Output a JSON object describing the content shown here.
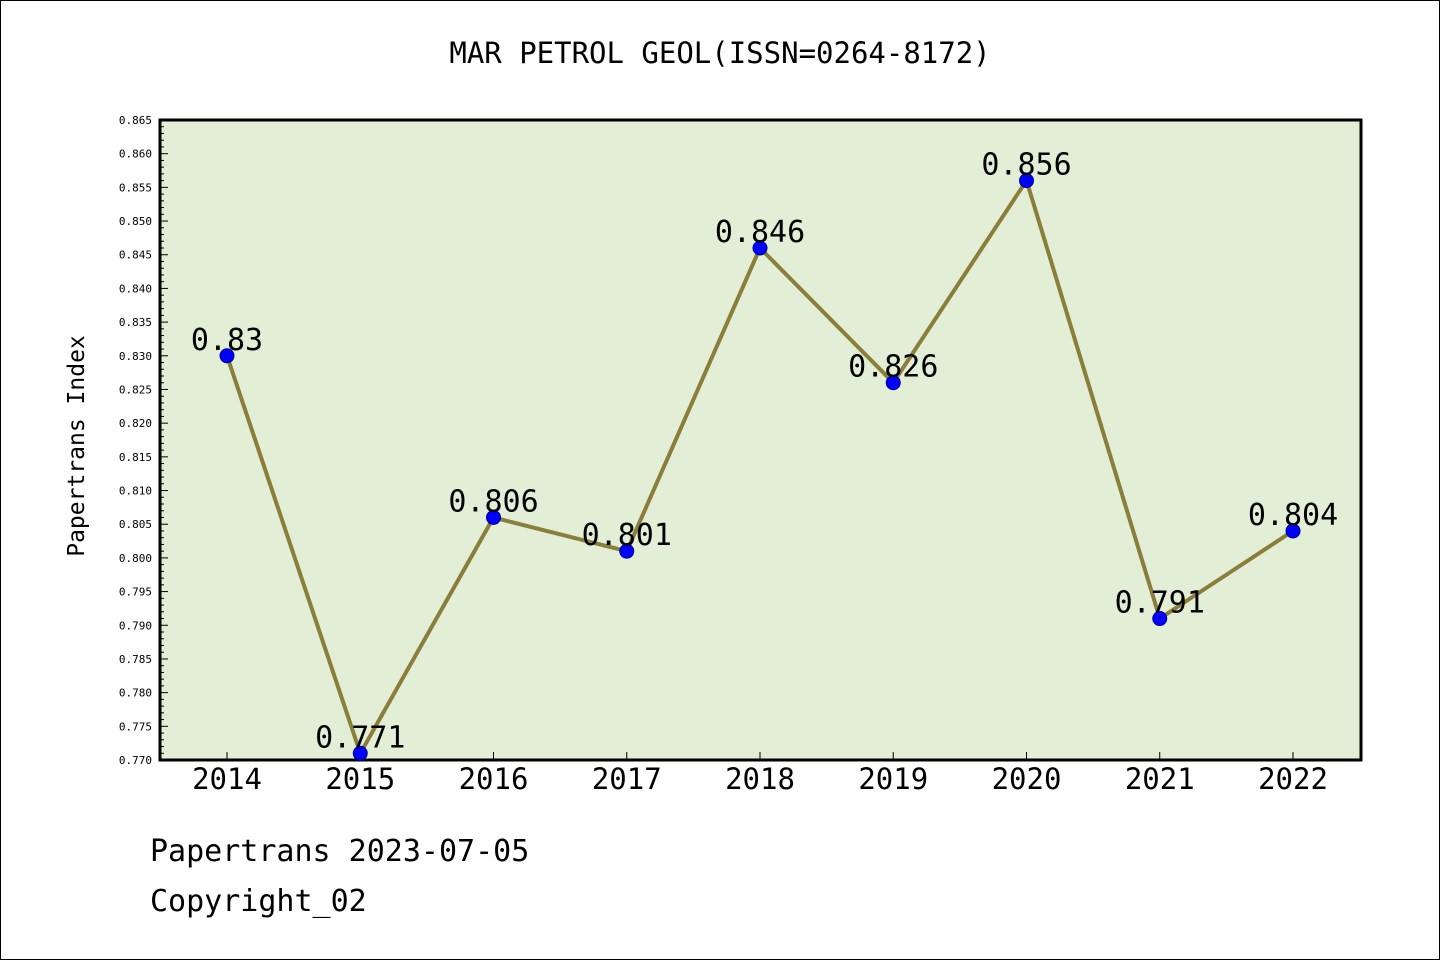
{
  "chart_data": {
    "type": "line",
    "title": "MAR PETROL GEOL(ISSN=0264-8172)",
    "xlabel": "",
    "ylabel": "Papertrans Index",
    "categories": [
      "2014",
      "2015",
      "2016",
      "2017",
      "2018",
      "2019",
      "2020",
      "2021",
      "2022"
    ],
    "series": [
      {
        "values": [
          0.83,
          0.771,
          0.806,
          0.801,
          0.846,
          0.826,
          0.856,
          0.791,
          0.804
        ],
        "labels": [
          "0.83",
          "0.771",
          "0.806",
          "0.801",
          "0.846",
          "0.826",
          "0.856",
          "0.791",
          "0.804"
        ]
      }
    ],
    "ylim": [
      0.77,
      0.865
    ],
    "yticks": [
      "0.770",
      "0.775",
      "0.780",
      "0.785",
      "0.790",
      "0.795",
      "0.800",
      "0.805",
      "0.810",
      "0.815",
      "0.820",
      "0.825",
      "0.830",
      "0.835",
      "0.840",
      "0.845",
      "0.850",
      "0.855",
      "0.860",
      "0.865"
    ],
    "grid": false,
    "colors": {
      "plot_background": "#e2efd6",
      "line": "#8b7d3a",
      "marker": "#0000ff"
    }
  },
  "footer": {
    "line1": "Papertrans 2023-07-05",
    "line2": "Copyright_02"
  }
}
